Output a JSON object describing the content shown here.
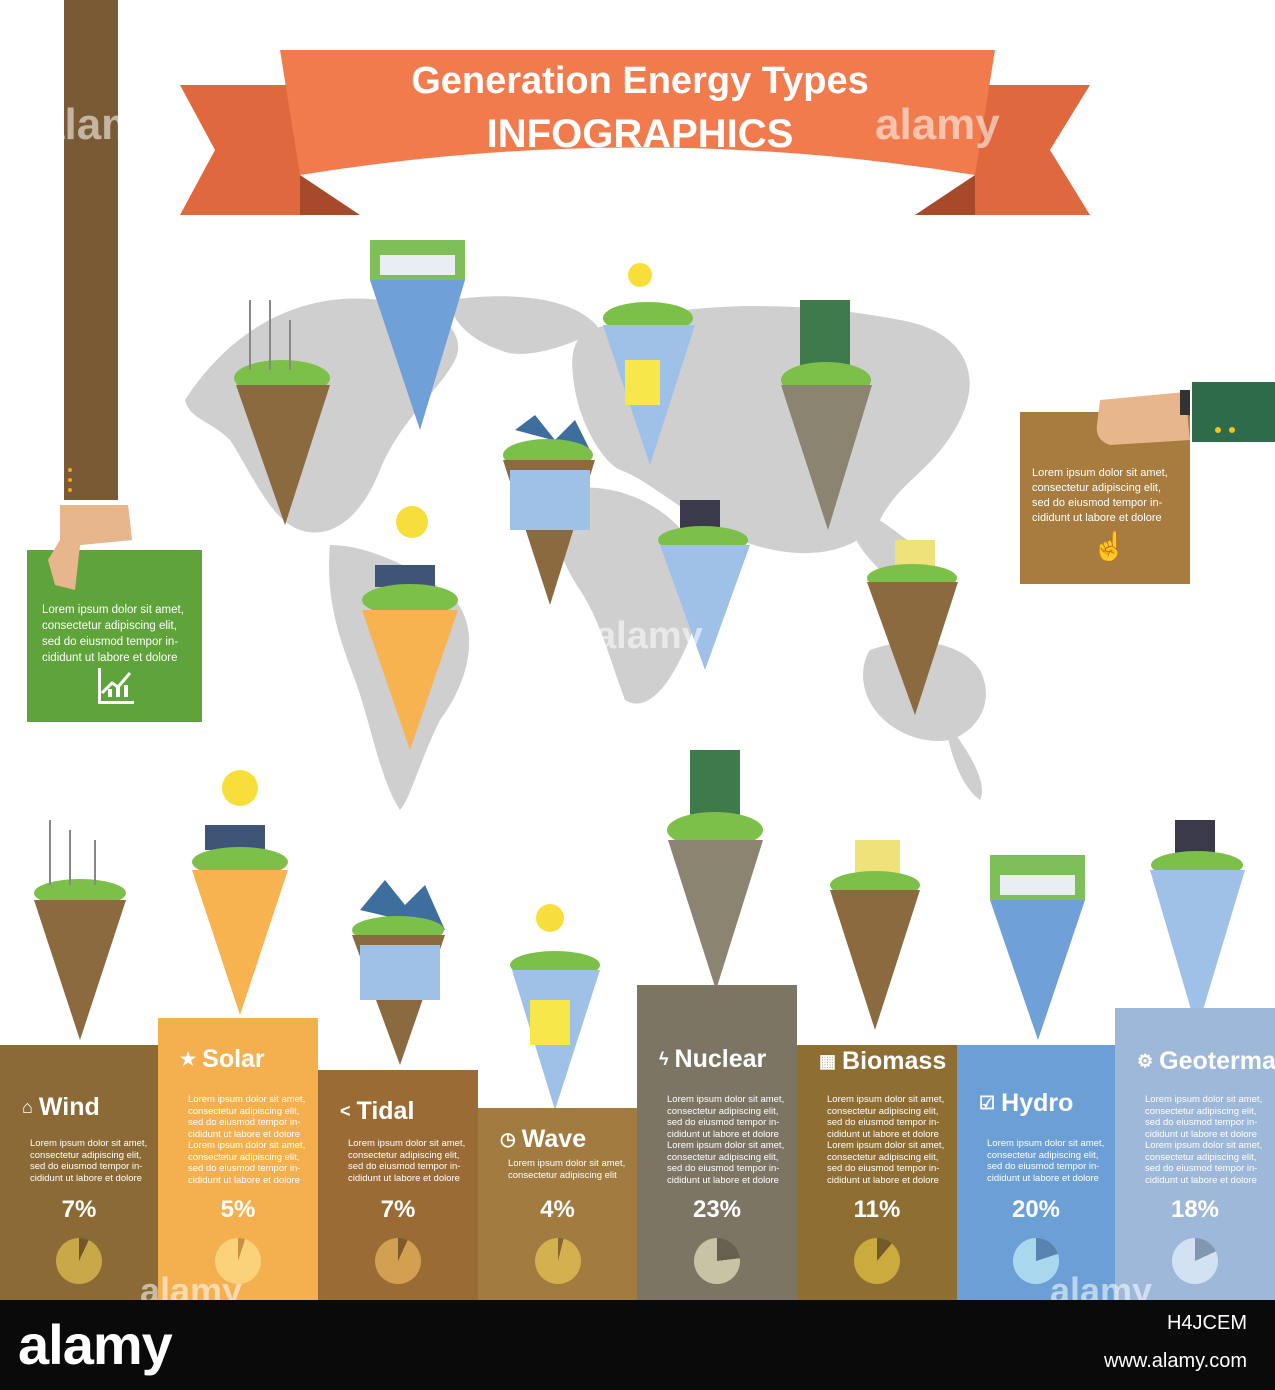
{
  "title": {
    "line1": "Generation Energy Types",
    "line2": "INFOGRAPHICS"
  },
  "colors": {
    "ribbon": "#f0794d",
    "ribbon_dark": "#c95c37",
    "map": "#cdcdcd",
    "green_card": "#5fa33b",
    "brown_card": "#a87c3f",
    "sleeve": "#7a5a34",
    "cuff_green": "#2e6b4a"
  },
  "cards": {
    "left": {
      "lines": [
        "Lorem ipsum dolor sit amet,",
        "consectetur adipiscing elit,",
        "sed do eiusmod tempor in-",
        "cididunt ut labore et dolore"
      ],
      "icon": "growth-chart-icon"
    },
    "right": {
      "lines": [
        "Lorem ipsum dolor sit amet,",
        "consectetur adipiscing elit,",
        "sed do eiusmod tempor in-",
        "cididunt ut labore et dolore"
      ],
      "icon": "pointer-hand-icon"
    }
  },
  "energy_types": [
    {
      "name": "Wind",
      "icon": "home-icon",
      "glyph": "⌂",
      "percent": "7%",
      "fraction": 0.07,
      "color": "#8b6a35",
      "pie": "#c9a84a",
      "lines": [
        "Lorem ipsum dolor sit amet,",
        "consectetur adipiscing elit,",
        "sed do eiusmod tempor in-",
        "cididunt ut labore et dolore"
      ]
    },
    {
      "name": "Solar",
      "icon": "star-icon",
      "glyph": "★",
      "percent": "5%",
      "fraction": 0.05,
      "color": "#f4b04f",
      "pie": "#fbd27a",
      "lines": [
        "Lorem ipsum dolor sit amet,",
        "consectetur adipiscing elit,",
        "sed do eiusmod tempor in-",
        "cididunt ut labore et dolore",
        "Lorem ipsum dolor sit amet,",
        "consectetur adipiscing elit,",
        "sed do eiusmod tempor in-",
        "cididunt ut labore et dolore"
      ]
    },
    {
      "name": "Tidal",
      "icon": "share-icon",
      "glyph": "<",
      "percent": "7%",
      "fraction": 0.07,
      "color": "#9b6b35",
      "pie": "#d2a050",
      "lines": [
        "Lorem ipsum dolor sit amet,",
        "consectetur adipiscing elit,",
        "sed do eiusmod tempor in-",
        "cididunt ut labore et dolore"
      ]
    },
    {
      "name": "Wave",
      "icon": "stopwatch-icon",
      "glyph": "◷",
      "percent": "4%",
      "fraction": 0.04,
      "color": "#a17b3f",
      "pie": "#d4b04e",
      "lines": [
        "Lorem ipsum dolor sit amet,",
        "consectetur adipiscing elit"
      ]
    },
    {
      "name": "Nuclear",
      "icon": "lightning-icon",
      "glyph": "ϟ",
      "percent": "23%",
      "fraction": 0.23,
      "color": "#7d7563",
      "pie": "#c8c3a4",
      "lines": [
        "Lorem ipsum dolor sit amet,",
        "consectetur adipiscing elit,",
        "sed do eiusmod tempor in-",
        "cididunt ut labore et dolore",
        "Lorem ipsum dolor sit amet,",
        "consectetur adipiscing elit,",
        "sed do eiusmod tempor in-",
        "cididunt ut labore et dolore"
      ]
    },
    {
      "name": "Biomass",
      "icon": "calendar-icon",
      "glyph": "▦",
      "percent": "11%",
      "fraction": 0.11,
      "color": "#8e6e33",
      "pie": "#cbaa3e",
      "lines": [
        "Lorem ipsum dolor sit amet,",
        "consectetur adipiscing elit,",
        "sed do eiusmod tempor in-",
        "cididunt ut labore et dolore",
        "Lorem ipsum dolor sit amet,",
        "consectetur adipiscing elit,",
        "sed do eiusmod tempor in-",
        "cididunt ut labore et dolore"
      ]
    },
    {
      "name": "Hydro",
      "icon": "checklist-icon",
      "glyph": "☑",
      "percent": "20%",
      "fraction": 0.2,
      "color": "#6b9fd6",
      "pie": "#a9d8ee",
      "lines": [
        "Lorem ipsum dolor sit amet,",
        "consectetur adipiscing elit,",
        "sed do eiusmod tempor in-",
        "cididunt ut labore et dolore"
      ]
    },
    {
      "name": "Geotermal",
      "icon": "gear-icon",
      "glyph": "⚙",
      "percent": "18%",
      "fraction": 0.18,
      "color": "#9db8d9",
      "pie": "#d3e2f2",
      "lines": [
        "Lorem ipsum dolor sit amet,",
        "consectetur adipiscing elit,",
        "sed do eiusmod tempor in-",
        "cididunt ut labore et dolore",
        "Lorem ipsum dolor sit amet,",
        "consectetur adipiscing elit,",
        "sed do eiusmod tempor in-",
        "cididunt ut labore et dolore"
      ]
    }
  ],
  "watermark": "alamy",
  "footer": {
    "brand": "alamy",
    "image_id": "H4JCEM",
    "site": "www.alamy.com"
  }
}
